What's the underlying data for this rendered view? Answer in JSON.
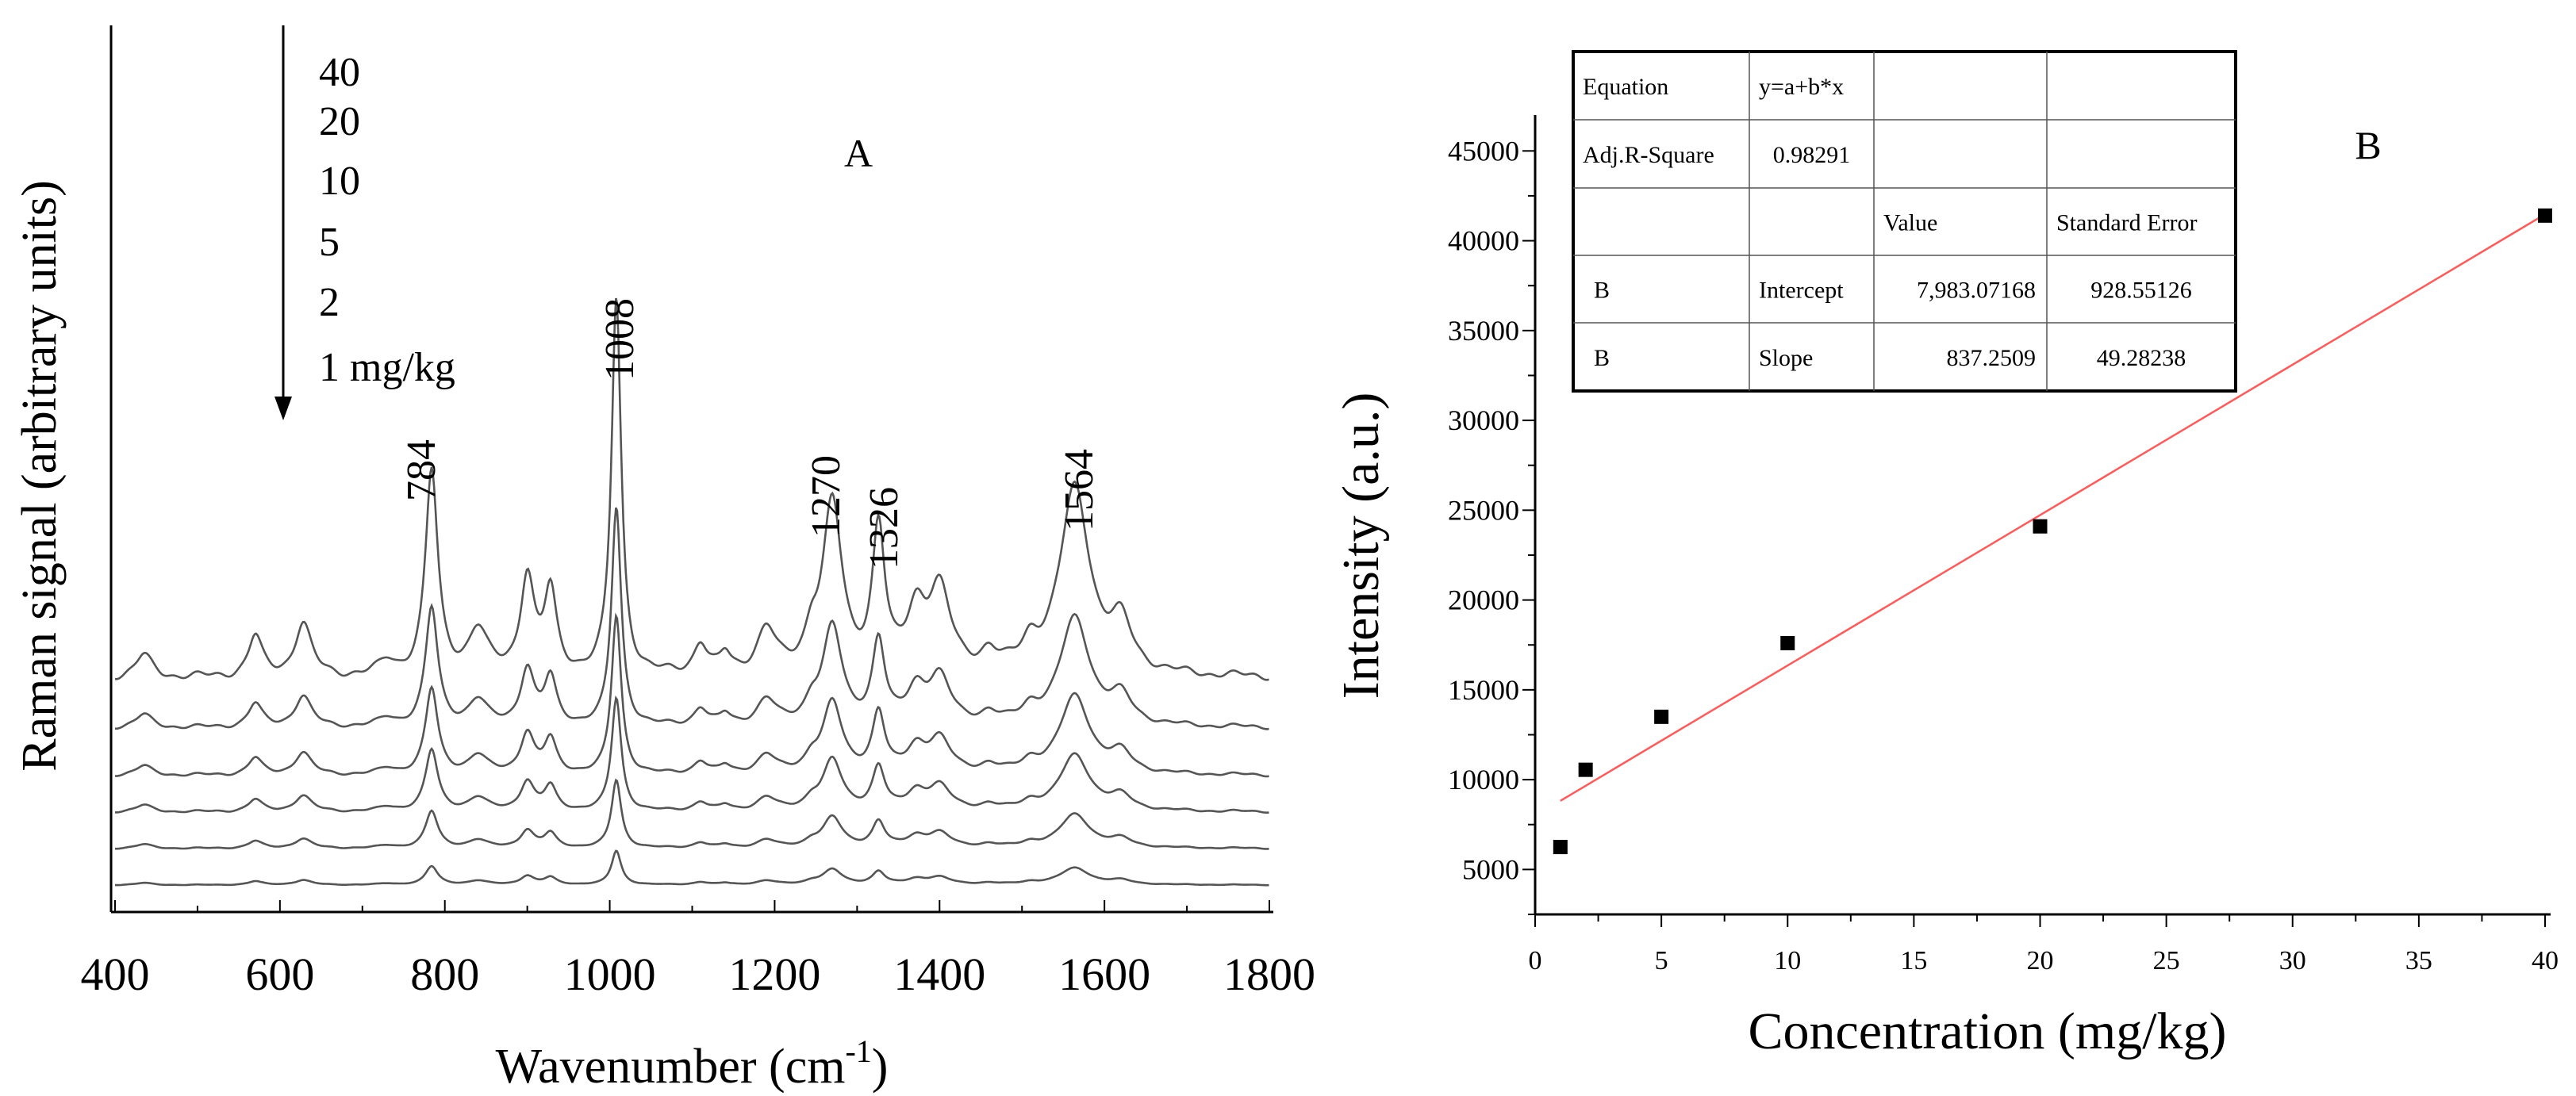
{
  "chart_data": [
    {
      "type": "line",
      "panel_label": "A",
      "xlabel": "Wavenumber (cm",
      "xlabel_sup": "-1",
      "xlabel_end": ")",
      "ylabel": "Raman signal (arbitrary units)",
      "xlim": [
        400,
        1800
      ],
      "x_ticks": [
        "400",
        "600",
        "800",
        "1000",
        "1200",
        "1400",
        "1600",
        "1800"
      ],
      "legend_arrow": "down",
      "series": [
        {
          "name": "40",
          "baseline": 0.0
        },
        {
          "name": "20",
          "baseline": 0.0
        },
        {
          "name": "10",
          "baseline": 0.0
        },
        {
          "name": "5",
          "baseline": 0.0
        },
        {
          "name": "2",
          "baseline": 0.0
        },
        {
          "name": "1 mg/kg",
          "baseline": 0.0
        }
      ],
      "series_scale": [
        1.0,
        0.58,
        0.42,
        0.3,
        0.18,
        0.09
      ],
      "peaks": [
        {
          "x": 435,
          "h": 0.05,
          "w": 12
        },
        {
          "x": 570,
          "h": 0.09,
          "w": 10
        },
        {
          "x": 628,
          "h": 0.12,
          "w": 12
        },
        {
          "x": 730,
          "h": 0.03,
          "w": 12
        },
        {
          "x": 784,
          "h": 0.46,
          "w": 9
        },
        {
          "x": 840,
          "h": 0.1,
          "w": 14
        },
        {
          "x": 900,
          "h": 0.22,
          "w": 10
        },
        {
          "x": 928,
          "h": 0.18,
          "w": 9
        },
        {
          "x": 1008,
          "h": 0.85,
          "w": 7
        },
        {
          "x": 1110,
          "h": 0.07,
          "w": 10
        },
        {
          "x": 1140,
          "h": 0.04,
          "w": 8
        },
        {
          "x": 1190,
          "h": 0.1,
          "w": 14
        },
        {
          "x": 1245,
          "h": 0.07,
          "w": 10
        },
        {
          "x": 1270,
          "h": 0.38,
          "w": 14
        },
        {
          "x": 1326,
          "h": 0.32,
          "w": 9
        },
        {
          "x": 1372,
          "h": 0.13,
          "w": 14
        },
        {
          "x": 1400,
          "h": 0.18,
          "w": 16
        },
        {
          "x": 1460,
          "h": 0.04,
          "w": 12
        },
        {
          "x": 1510,
          "h": 0.05,
          "w": 12
        },
        {
          "x": 1564,
          "h": 0.42,
          "w": 22
        },
        {
          "x": 1620,
          "h": 0.1,
          "w": 16
        }
      ],
      "peak_labels": [
        "784",
        "1008",
        "1270",
        "1326",
        "1564"
      ]
    },
    {
      "type": "scatter",
      "panel_label": "B",
      "xlabel": "Concentration (mg/kg)",
      "ylabel": "Intensity (a.u.)",
      "xlim": [
        0,
        40
      ],
      "ylim": [
        2500,
        47000
      ],
      "x_ticks": [
        0,
        5,
        10,
        15,
        20,
        25,
        30,
        35,
        40
      ],
      "y_ticks": [
        5000,
        10000,
        15000,
        20000,
        25000,
        30000,
        35000,
        40000,
        45000
      ],
      "x": [
        1,
        2,
        5,
        10,
        20,
        40
      ],
      "y": [
        6250,
        10550,
        13500,
        17600,
        24100,
        41400
      ],
      "fit": {
        "intercept": 7983.07168,
        "slope": 837.2509,
        "x_range": [
          1,
          40
        ],
        "color": "#ff5a5a"
      },
      "fit_table": {
        "rows": [
          [
            "Equation",
            "y=a+b*x",
            "",
            ""
          ],
          [
            "Adj.R-Square",
            "0.98291",
            "",
            ""
          ],
          [
            "",
            "",
            "Value",
            "Standard Error"
          ],
          [
            "B",
            "Intercept",
            "7,983.07168",
            "928.55126"
          ],
          [
            "B",
            "Slope",
            "837.2509",
            "49.28238"
          ]
        ]
      }
    }
  ]
}
